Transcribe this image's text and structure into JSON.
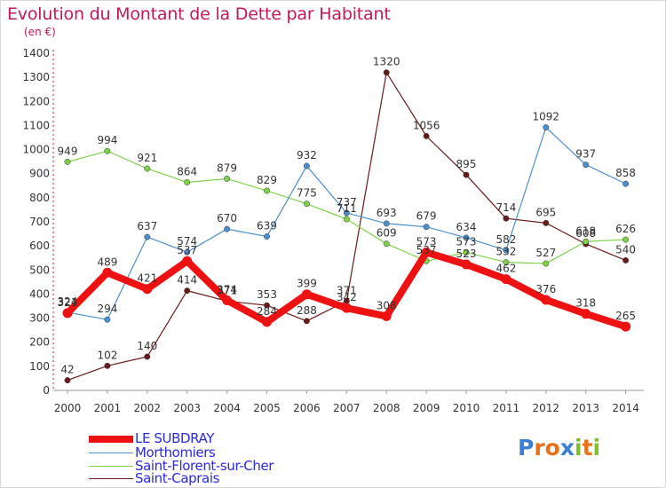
{
  "title": "Evolution du Montant de la Dette par Habitant",
  "subtitle": "(en €)",
  "logo": {
    "text": "Proxiti",
    "letters": [
      "P",
      "r",
      "o",
      "x",
      "i",
      "t",
      "i"
    ],
    "colors": [
      "#3a7fd5",
      "#e8701a",
      "#e8701a",
      "#3a7fd5",
      "#7fbf2a",
      "#e8701a",
      "#7fbf2a"
    ]
  },
  "chart_data": {
    "type": "line",
    "x": [
      "2000",
      "2001",
      "2002",
      "2003",
      "2004",
      "2005",
      "2006",
      "2007",
      "2008",
      "2009",
      "2010",
      "2011",
      "2012",
      "2013",
      "2014"
    ],
    "ylim": [
      0,
      1400
    ],
    "yticks": [
      0,
      100,
      200,
      300,
      400,
      500,
      600,
      700,
      800,
      900,
      1000,
      1100,
      1200,
      1300,
      1400
    ],
    "grid": false,
    "legend_position": "bottom-left",
    "series": [
      {
        "name": "LE SUBDRAY",
        "color": "#ee1111",
        "values": [
          321,
          489,
          421,
          537,
          374,
          284,
          399,
          342,
          308,
          573,
          523,
          462,
          376,
          318,
          265
        ],
        "labels": [
          "321",
          "489",
          "421",
          "",
          "",
          "284",
          "399",
          "342",
          "308",
          "",
          "523",
          "",
          "376",
          "318",
          "265"
        ]
      },
      {
        "name": "Morthomiers",
        "color": "#4a8fd0",
        "values": [
          324,
          294,
          637,
          574,
          670,
          639,
          932,
          737,
          693,
          679,
          634,
          582,
          1092,
          937,
          858
        ],
        "labels": [
          "324",
          "294",
          "637",
          "574",
          "670",
          "639",
          "932",
          "737",
          "693",
          "679",
          "634",
          "582",
          "1092",
          "937",
          "858"
        ]
      },
      {
        "name": "Saint-Florent-sur-Cher",
        "color": "#7ed24a",
        "values": [
          949,
          994,
          921,
          864,
          879,
          829,
          775,
          711,
          609,
          537,
          573,
          532,
          527,
          618,
          626
        ],
        "labels": [
          "949",
          "994",
          "921",
          "864",
          "879",
          "829",
          "775",
          "711",
          "609",
          "537",
          "573",
          "532",
          "527",
          "618",
          "626"
        ]
      },
      {
        "name": "Saint-Caprais",
        "color": "#6b1a1a",
        "values": [
          42,
          102,
          140,
          414,
          371,
          353,
          288,
          371,
          1320,
          1056,
          895,
          714,
          695,
          608,
          540
        ],
        "labels": [
          "42",
          "102",
          "140",
          "414",
          "371",
          "353",
          "288",
          "371",
          "1320",
          "1056",
          "895",
          "714",
          "695",
          "608",
          "540"
        ]
      }
    ],
    "extra_labels": [
      {
        "x": "2003",
        "y": 537,
        "text": "537"
      },
      {
        "x": "2004",
        "y": 374,
        "text": "374"
      },
      {
        "x": "2009",
        "y": 573,
        "text": "573"
      },
      {
        "x": "2011",
        "y": 462,
        "text": "462"
      }
    ]
  }
}
